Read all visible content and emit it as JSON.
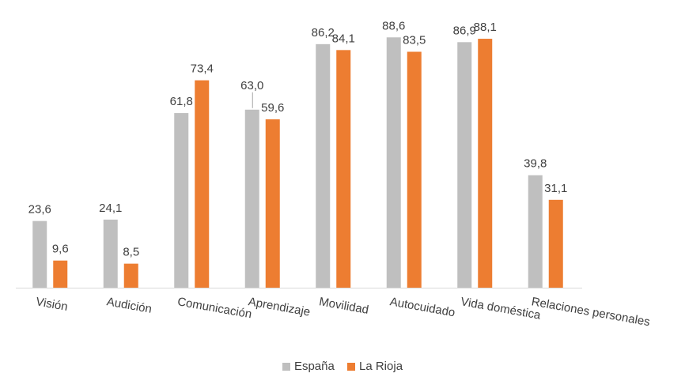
{
  "chart_data": {
    "type": "bar",
    "title": "",
    "xlabel": "",
    "ylabel": "",
    "ylim": [
      0,
      100
    ],
    "grid": false,
    "legend_position": "bottom",
    "categories": [
      "Visión",
      "Audición",
      "Comunicación",
      "Aprendizaje",
      "Movilidad",
      "Autocuidado",
      "Vida doméstica",
      "Relaciones personales"
    ],
    "series": [
      {
        "name": "España",
        "color": "#bfbfbf",
        "values": [
          23.6,
          24.1,
          61.8,
          63.0,
          86.2,
          88.6,
          86.9,
          39.8
        ],
        "labels": [
          "23,6",
          "24,1",
          "61,8",
          "63,0",
          "86,2",
          "88,6",
          "86,9",
          "39,8"
        ]
      },
      {
        "name": "La Rioja",
        "color": "#ed7d31",
        "values": [
          9.6,
          8.5,
          73.4,
          59.6,
          84.1,
          83.5,
          88.1,
          31.1
        ],
        "labels": [
          "9,6",
          "8,5",
          "73,4",
          "59,6",
          "84,1",
          "83,5",
          "88,1",
          "31,1"
        ]
      }
    ]
  }
}
